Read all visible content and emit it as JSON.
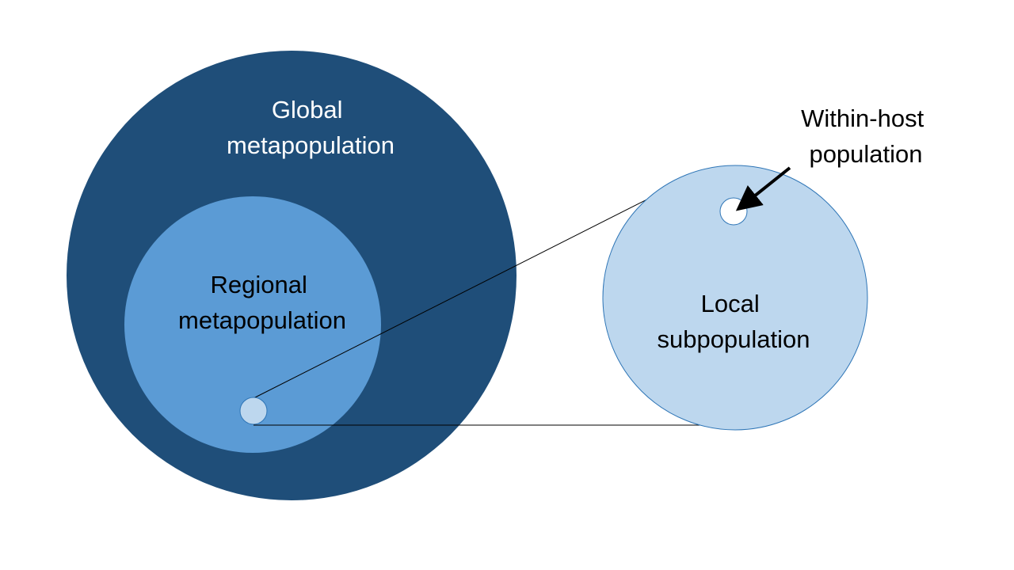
{
  "diagram": {
    "global": {
      "line1": "Global",
      "line2": "metapopulation",
      "fill": "#1F4E79",
      "text_color": "#FFFFFF"
    },
    "regional": {
      "line1": "Regional",
      "line2": "metapopulation",
      "fill": "#5B9BD5",
      "text_color": "#000000"
    },
    "local": {
      "line1": "Local",
      "line2": "subpopulation",
      "fill": "#BDD7EE",
      "stroke": "#2E75B6",
      "text_color": "#000000"
    },
    "within_host": {
      "line1": "Within-host",
      "line2": "population",
      "fill": "#FFFFFF",
      "text_color": "#000000"
    },
    "connector_color": "#000000"
  }
}
